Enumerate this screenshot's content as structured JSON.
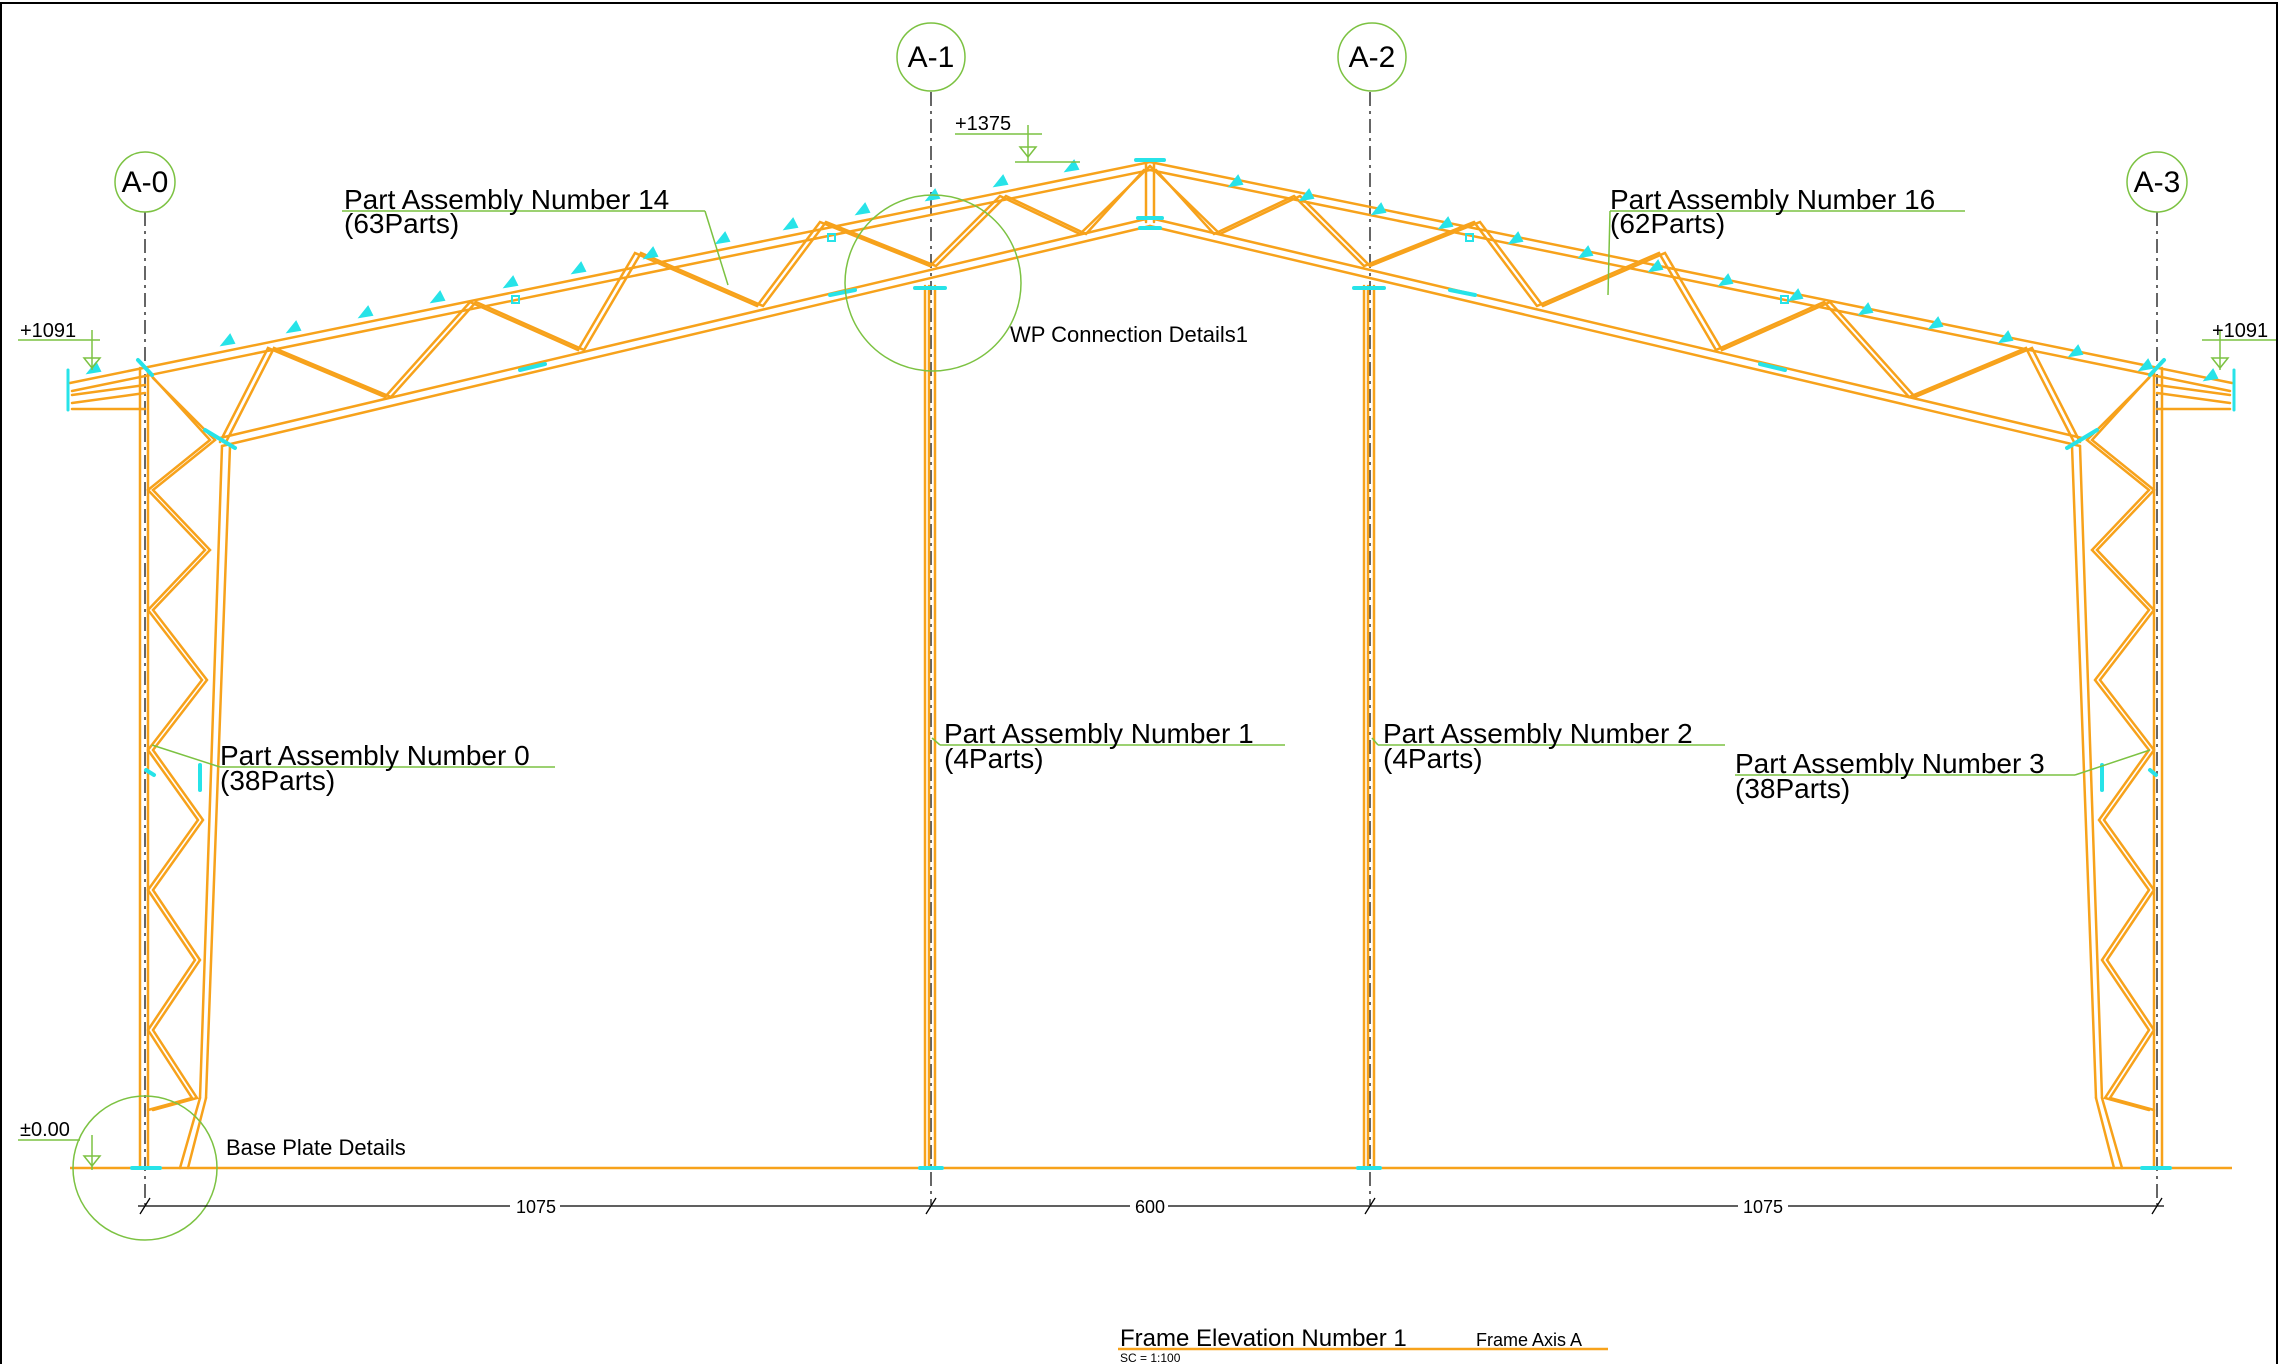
{
  "grid_axes": [
    {
      "label": "A-0"
    },
    {
      "label": "A-1"
    },
    {
      "label": "A-2"
    },
    {
      "label": "A-3"
    }
  ],
  "levels": {
    "ridge": "+1375",
    "eave_left": "+1091",
    "eave_right": "+1091",
    "ground": "±0.00"
  },
  "assemblies": {
    "rafter_left": {
      "title": "Part Assembly Number 14",
      "parts": "(63Parts)"
    },
    "rafter_right": {
      "title": "Part Assembly Number 16",
      "parts": "(62Parts)"
    },
    "column_0": {
      "title": "Part Assembly Number 0",
      "parts": "(38Parts)"
    },
    "column_1": {
      "title": "Part Assembly Number 1",
      "parts": "(4Parts)"
    },
    "column_2": {
      "title": "Part Assembly Number 2",
      "parts": "(4Parts)"
    },
    "column_3": {
      "title": "Part Assembly Number 3",
      "parts": "(38Parts)"
    }
  },
  "details": {
    "wp_connection": "WP Connection Details1",
    "base_plate": "Base Plate Details"
  },
  "dimensions": [
    "1075",
    "600",
    "1075"
  ],
  "title_block": {
    "title": "Frame Elevation Number 1",
    "axis": "Frame Axis A",
    "scale": "SC = 1:100"
  },
  "colors": {
    "member": "#f7a21b",
    "plate": "#27e3e8",
    "annotation": "#7cc242",
    "axis_line": "#333333"
  }
}
